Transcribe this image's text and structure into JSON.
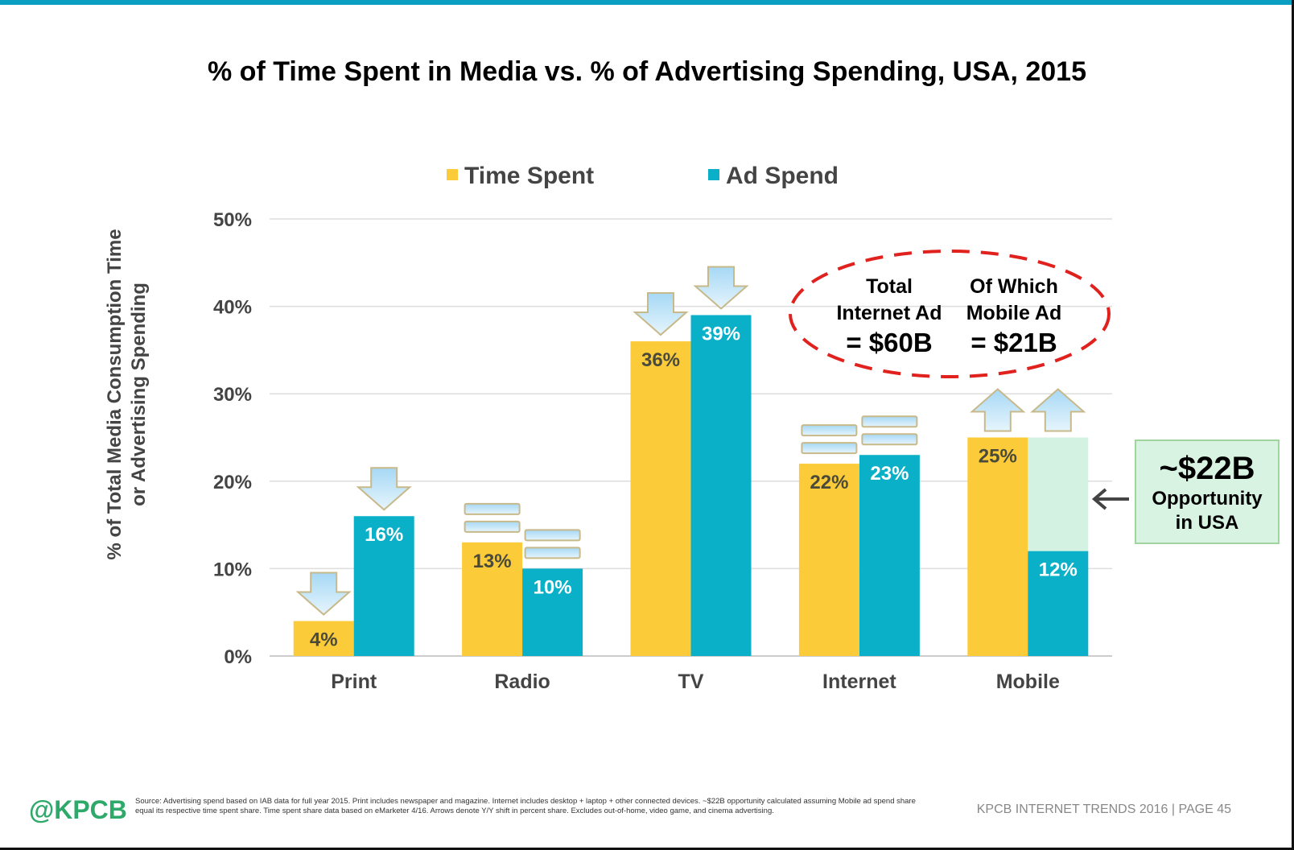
{
  "chart_data": {
    "type": "bar",
    "title": "% of Time Spent in Media vs. % of Advertising Spending, USA, 2015",
    "ylabel": "% of Total Media Consumption Time or Advertising Spending",
    "ylabel_lines": [
      "% of Total Media Consumption Time",
      "or Advertising Spending"
    ],
    "ylim": [
      0,
      50
    ],
    "yticks": [
      "0%",
      "10%",
      "20%",
      "30%",
      "40%",
      "50%"
    ],
    "grid": true,
    "legend_placement": "top",
    "categories": [
      "Print",
      "Radio",
      "TV",
      "Internet",
      "Mobile"
    ],
    "series": [
      {
        "name": "Time Spent",
        "color": "#fccb3a",
        "values": [
          4,
          13,
          36,
          22,
          25
        ],
        "labels": [
          "4%",
          "13%",
          "36%",
          "22%",
          "25%"
        ],
        "yoy_arrows": [
          "down",
          "flat",
          "down",
          "flat",
          "up"
        ]
      },
      {
        "name": "Ad Spend",
        "color": "#0ab0c8",
        "values": [
          16,
          10,
          39,
          23,
          12
        ],
        "labels": [
          "16%",
          "10%",
          "39%",
          "23%",
          "12%"
        ],
        "yoy_arrows": [
          "down",
          "flat",
          "down",
          "flat",
          "up"
        ]
      }
    ],
    "opportunity_gap": {
      "category": "Mobile",
      "from": 12,
      "to": 25,
      "color": "#d4f2e2"
    },
    "callout": {
      "left_lines": [
        "Total",
        "Internet Ad",
        "= $60B"
      ],
      "right_lines": [
        "Of Which",
        "Mobile Ad",
        "= $21B"
      ]
    },
    "opportunity": {
      "amount": "~$22B",
      "lines": [
        "Opportunity",
        "in USA"
      ]
    }
  },
  "footer": {
    "logo": "@KPCB",
    "source": "Source: Advertising spend based on IAB data for full year 2015. Print includes newspaper and magazine. Internet includes desktop + laptop + other connected devices. ~$22B opportunity calculated assuming Mobile ad spend share equal its respective time spent share. Time spent share data based on eMarketer 4/16. Arrows denote Y/Y shift in percent share. Excludes out-of-home, video game, and cinema advertising.",
    "page": "KPCB INTERNET TRENDS 2016   |   PAGE 45"
  },
  "colors": {
    "accent": "#0a9fc0",
    "callout_dash": "#e0211d",
    "arrow": "#b8e0f6"
  }
}
